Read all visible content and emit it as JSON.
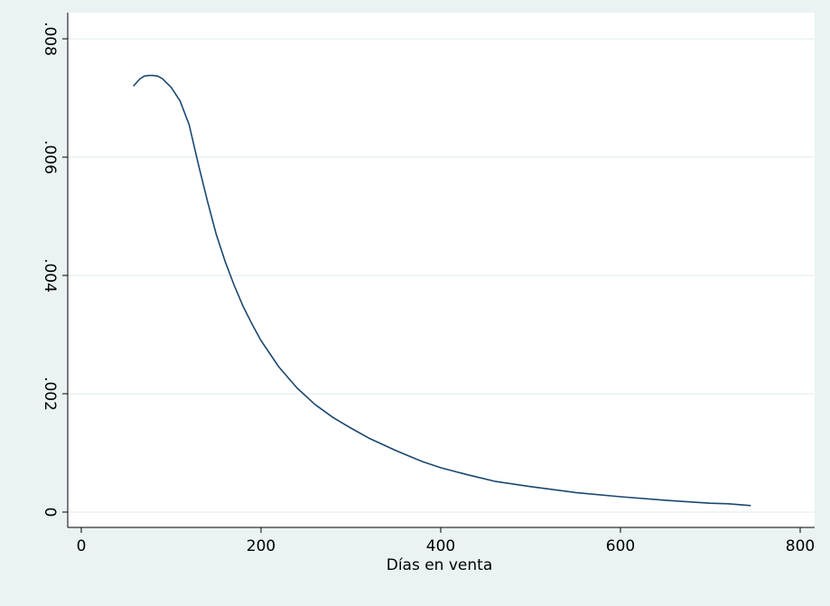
{
  "chart_data": {
    "type": "line",
    "title": "",
    "xlabel": "Días en venta",
    "ylabel": "",
    "xlim": [
      0,
      800
    ],
    "ylim": [
      0,
      0.008
    ],
    "x_ticks": [
      0,
      200,
      400,
      600,
      800
    ],
    "x_tick_labels": [
      "0",
      "200",
      "400",
      "600",
      "800"
    ],
    "y_ticks": [
      0,
      0.002,
      0.004,
      0.006,
      0.008
    ],
    "y_tick_labels": [
      "0",
      ".002",
      ".004",
      ".006",
      ".008"
    ],
    "grid": "horizontal",
    "colors": {
      "background": "#eaf2f3",
      "plot_area": "#ffffff",
      "line": "#1a476f",
      "grid": "#eaf2f3"
    },
    "series": [
      {
        "x": [
          58,
          65,
          70,
          75,
          80,
          85,
          90,
          100,
          110,
          120,
          130,
          140,
          150,
          160,
          170,
          180,
          190,
          200,
          220,
          240,
          260,
          280,
          300,
          320,
          350,
          380,
          400,
          430,
          460,
          500,
          550,
          600,
          650,
          680,
          700,
          720,
          745
        ],
        "y": [
          0.0072,
          0.00732,
          0.00737,
          0.00738,
          0.00738,
          0.00737,
          0.00733,
          0.00718,
          0.00695,
          0.00655,
          0.0059,
          0.00528,
          0.0047,
          0.00424,
          0.00384,
          0.00348,
          0.00318,
          0.0029,
          0.00245,
          0.0021,
          0.00182,
          0.0016,
          0.00142,
          0.00125,
          0.00104,
          0.00085,
          0.00075,
          0.00063,
          0.00052,
          0.00043,
          0.00033,
          0.00026,
          0.0002,
          0.00017,
          0.00015,
          0.00014,
          0.00011
        ]
      }
    ]
  }
}
